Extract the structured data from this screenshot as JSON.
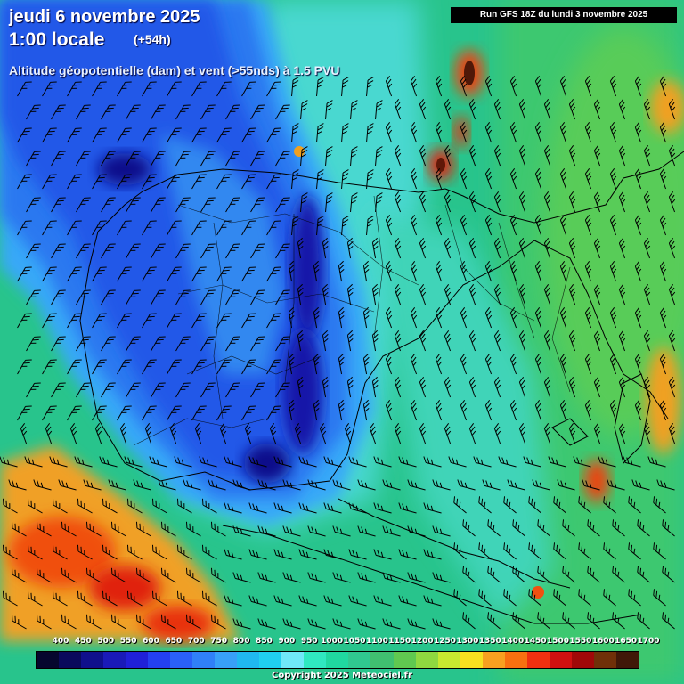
{
  "header": {
    "date": "jeudi 6 novembre 2025",
    "local_time": "1:00 locale",
    "offset": "(+54h)",
    "field": "Altitude géopotentielle (dam) et vent (>55nds) à 1.5 PVU"
  },
  "run_banner": "Run GFS 18Z du lundi 3 novembre 2025",
  "legend": {
    "labels": [
      "400",
      "450",
      "500",
      "550",
      "600",
      "650",
      "700",
      "750",
      "800",
      "850",
      "900",
      "950",
      "1000",
      "1050",
      "1100",
      "1150",
      "1200",
      "1250",
      "1300",
      "1350",
      "1400",
      "1450",
      "1500",
      "1550",
      "1600",
      "1650",
      "1700"
    ],
    "colors": [
      "#06062e",
      "#0a0a5c",
      "#10108c",
      "#1a1ab8",
      "#2020d8",
      "#2440f0",
      "#2a60f8",
      "#3080f8",
      "#38a0f8",
      "#20b8f0",
      "#20d0f0",
      "#70e8f8",
      "#30e8c0",
      "#20d8a0",
      "#30c890",
      "#40c070",
      "#60c850",
      "#90d840",
      "#c8e830",
      "#f8e020",
      "#f8a020",
      "#f87010",
      "#f03010",
      "#d01010",
      "#a00808",
      "#703008",
      "#401808"
    ]
  },
  "copyright": "Copyright 2025 Meteociel.fr",
  "colors": {
    "deep_low": "#10109a",
    "low": "#2a6af0",
    "mid_low": "#38a8f8",
    "transition": "#40d8d0",
    "green": "#20c890",
    "warm": "#f08020",
    "hot": "#d02010"
  }
}
